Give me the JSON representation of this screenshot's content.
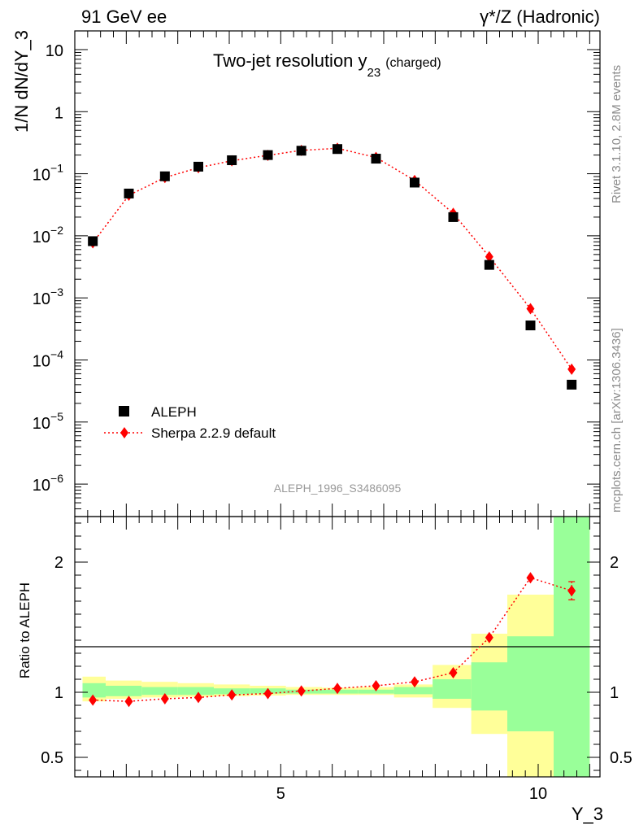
{
  "header": {
    "left": "91 GeV ee",
    "right": "γ*/Z (Hadronic)"
  },
  "side_labels": {
    "top": "Rivet 3.1.10,  2.8M events",
    "bottom": "mcplots.cern.ch [arXiv:1306.3436]"
  },
  "chart_data": [
    {
      "type": "scatter",
      "panel": "main",
      "title": "Two-jet resolution y",
      "title_sub": "23",
      "title_suffix": "(charged)",
      "ylabel": "1/N dN/dY_3",
      "xlabel": "",
      "yscale": "log",
      "ylim": [
        3e-07,
        20
      ],
      "xlim": [
        1.0,
        11.2
      ],
      "watermark": "ALEPH_1996_S3486095",
      "legend_position": "bottom-left",
      "y_tick_labels": [
        {
          "v": 10,
          "base": "10",
          "exp": ""
        },
        {
          "v": 1,
          "base": "1",
          "exp": ""
        },
        {
          "v": 0.1,
          "base": "10",
          "exp": "−1"
        },
        {
          "v": 0.01,
          "base": "10",
          "exp": "−2"
        },
        {
          "v": 0.001,
          "base": "10",
          "exp": "−3"
        },
        {
          "v": 0.0001,
          "base": "10",
          "exp": "−4"
        },
        {
          "v": 1e-05,
          "base": "10",
          "exp": "−5"
        },
        {
          "v": 1e-06,
          "base": "10",
          "exp": "−6"
        }
      ],
      "series": [
        {
          "name": "ALEPH",
          "marker": "square",
          "color": "#000000",
          "x": [
            1.35,
            2.05,
            2.75,
            3.4,
            4.05,
            4.75,
            5.4,
            6.1,
            6.85,
            7.6,
            8.35,
            9.05,
            9.85,
            10.65
          ],
          "y": [
            0.0082,
            0.048,
            0.091,
            0.13,
            0.165,
            0.2,
            0.235,
            0.25,
            0.175,
            0.072,
            0.02,
            0.0034,
            0.00036,
            4e-05
          ]
        },
        {
          "name": "Sherpa 2.2.9 default",
          "marker": "diamond",
          "line": "dotted",
          "color": "#ff0000",
          "x": [
            1.35,
            2.05,
            2.75,
            3.4,
            4.05,
            4.75,
            5.4,
            6.1,
            6.85,
            7.6,
            8.35,
            9.05,
            9.85,
            10.65
          ],
          "y": [
            0.0077,
            0.045,
            0.087,
            0.125,
            0.162,
            0.198,
            0.238,
            0.257,
            0.183,
            0.078,
            0.023,
            0.0046,
            0.00067,
            7.1e-05
          ]
        }
      ]
    },
    {
      "type": "line",
      "panel": "ratio",
      "ylabel": "Ratio to ALEPH",
      "xlabel": "Y_3",
      "ylim": [
        0.35,
        2.35
      ],
      "xlim": [
        1.0,
        11.2
      ],
      "x_ticks": [
        5,
        10
      ],
      "y_ticks": [
        0.5,
        1,
        2
      ],
      "bands": {
        "edges": [
          1.15,
          1.6,
          2.3,
          3.0,
          3.7,
          4.4,
          5.1,
          5.8,
          6.5,
          7.2,
          7.95,
          8.7,
          9.4,
          10.3,
          11.0
        ],
        "yellow_lo": [
          0.93,
          0.95,
          0.96,
          0.965,
          0.97,
          0.975,
          0.98,
          0.98,
          0.98,
          0.96,
          0.88,
          0.68,
          0.0,
          0.0
        ],
        "yellow_hi": [
          1.12,
          1.09,
          1.08,
          1.07,
          1.06,
          1.05,
          1.04,
          1.035,
          1.04,
          1.06,
          1.21,
          1.45,
          1.75,
          2.5
        ],
        "green_lo": [
          0.96,
          0.97,
          0.98,
          0.98,
          0.985,
          0.99,
          0.99,
          0.99,
          0.99,
          0.985,
          0.95,
          0.86,
          0.7,
          0.0
        ],
        "green_hi": [
          1.07,
          1.05,
          1.04,
          1.04,
          1.03,
          1.03,
          1.02,
          1.02,
          1.02,
          1.04,
          1.1,
          1.23,
          1.43,
          2.5
        ],
        "yellow_color": "#ffff99",
        "green_color": "#99ff99"
      },
      "series": [
        {
          "name": "Sherpa 2.2.9 default",
          "color": "#ff0000",
          "x": [
            1.35,
            2.05,
            2.75,
            3.4,
            4.05,
            4.75,
            5.4,
            6.1,
            6.85,
            7.6,
            8.35,
            9.05,
            9.85,
            10.65
          ],
          "y": [
            0.94,
            0.93,
            0.95,
            0.96,
            0.98,
            0.99,
            1.01,
            1.03,
            1.05,
            1.08,
            1.15,
            1.42,
            1.88,
            1.78
          ],
          "err": [
            0,
            0,
            0,
            0,
            0,
            0,
            0,
            0,
            0,
            0,
            0,
            0,
            0,
            0.14
          ]
        }
      ]
    }
  ]
}
